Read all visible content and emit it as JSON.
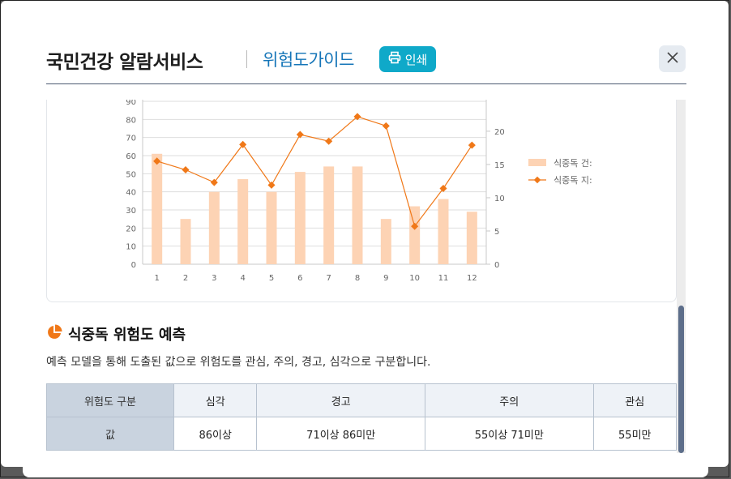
{
  "header": {
    "title": "국민건강 알람서비스",
    "subtitle": "위험도가이드",
    "print_label": "인쇄",
    "print_icon": "printer-icon",
    "close_icon": "close-icon"
  },
  "colors": {
    "bar": "#fdd3b4",
    "line": "#f07818",
    "accent": "#0fa9c9",
    "subtitle": "#1575b8"
  },
  "chart_data": {
    "type": "bar",
    "categories": [
      "1",
      "2",
      "3",
      "4",
      "5",
      "6",
      "7",
      "8",
      "9",
      "10",
      "11",
      "12"
    ],
    "series": [
      {
        "name": "식중독 건:",
        "type": "bar",
        "axis": "left",
        "values": [
          61,
          25,
          40,
          47,
          40,
          51,
          54,
          54,
          25,
          32,
          36,
          29
        ]
      },
      {
        "name": "식중독 지:",
        "type": "line",
        "axis": "right",
        "values": [
          15.5,
          14.2,
          12.3,
          18,
          11.9,
          19.5,
          18.5,
          22.2,
          20.8,
          5.7,
          11.4,
          17.9
        ]
      }
    ],
    "y_left_ticks": [
      "0",
      "10",
      "20",
      "30",
      "40",
      "50",
      "60",
      "70",
      "80",
      "90"
    ],
    "y_right_ticks": [
      "0",
      "5",
      "10",
      "15",
      "20"
    ],
    "ylim_left": [
      0,
      90
    ],
    "ylim_right": [
      0,
      24.5
    ],
    "legend_position": "right",
    "grid": true
  },
  "section": {
    "title": "식중독 위험도 예측",
    "icon": "pie-chart-icon",
    "description": "예측 모델을 통해 도출된 값으로 위험도를 관심, 주의, 경고, 심각으로 구분합니다."
  },
  "table": {
    "header_label": "위험도 구분",
    "value_label": "값",
    "columns": [
      "심각",
      "경고",
      "주의",
      "관심"
    ],
    "values": [
      "86이상",
      "71이상 86미만",
      "55이상 71미만",
      "55미만"
    ]
  }
}
